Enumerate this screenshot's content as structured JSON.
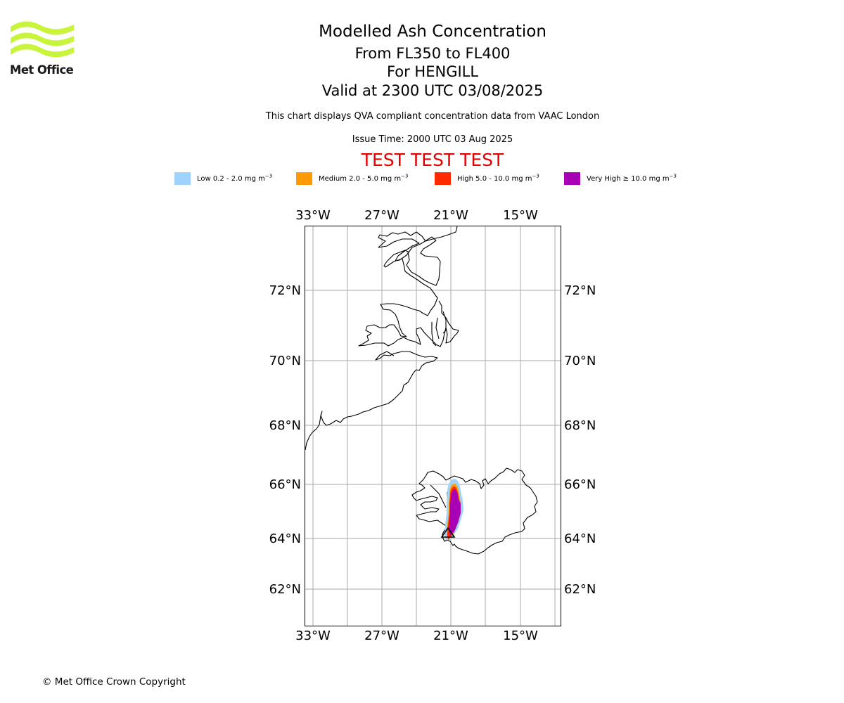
{
  "logo": {
    "text": "Met Office",
    "color": "#c8f53c"
  },
  "header": {
    "title": "Modelled Ash Concentration",
    "levels": "From FL350 to FL400",
    "volcano": "For HENGILL",
    "valid": "Valid at 2300 UTC 03/08/2025",
    "description": "This chart displays QVA compliant concentration data from VAAC London",
    "issue_time": "Issue Time: 2000 UTC 03 Aug 2025",
    "test_banner": "TEST TEST TEST",
    "test_color": "#e60000"
  },
  "legend": [
    {
      "label": "Low 0.2 - 2.0 mg m",
      "exp": "−3",
      "color": "#a0d3fb"
    },
    {
      "label": "Medium 2.0 - 5.0 mg m",
      "exp": "−3",
      "color": "#ff9a00"
    },
    {
      "label": "High 5.0 - 10.0 mg m",
      "exp": "−3",
      "color": "#ff2a00"
    },
    {
      "label": "Very High  ≥  10.0 mg m",
      "exp": "−3",
      "color": "#a800b4"
    }
  ],
  "map": {
    "lon_labels": [
      "33°W",
      "27°W",
      "21°W",
      "15°W"
    ],
    "lat_labels": [
      "72°N",
      "70°N",
      "68°N",
      "66°N",
      "64°N",
      "62°N"
    ],
    "gridline_color": "#aaaaaa"
  },
  "footer": {
    "copyright": "© Met Office Crown Copyright"
  }
}
